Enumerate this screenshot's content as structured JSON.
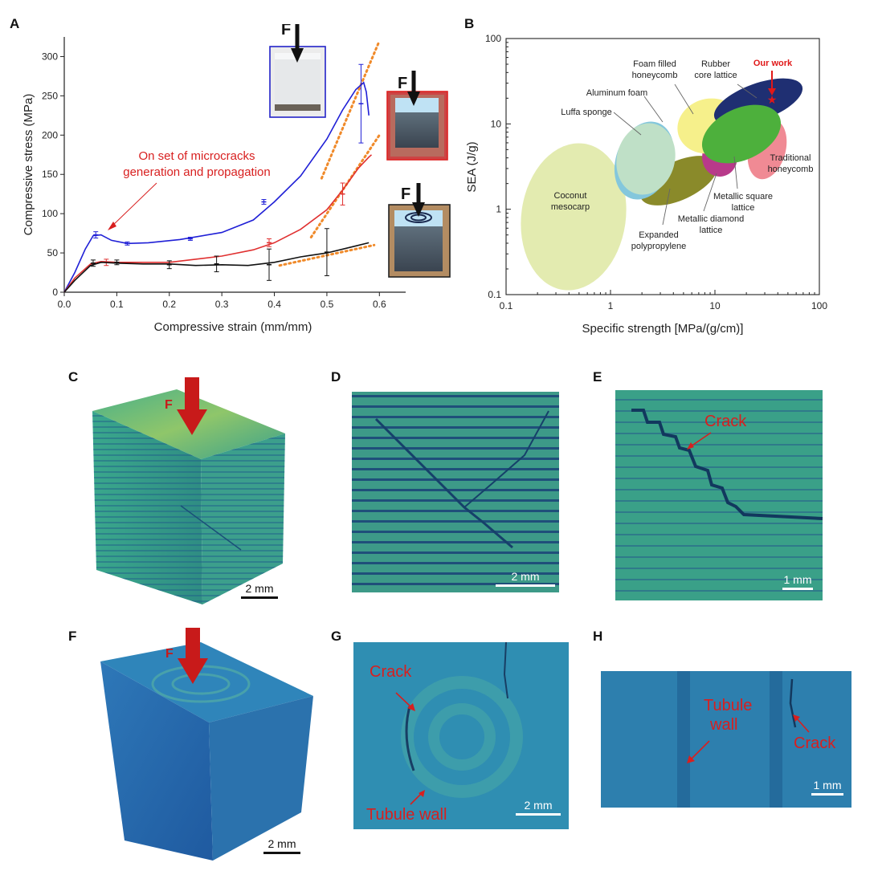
{
  "panels": {
    "A": "A",
    "B": "B",
    "C": "C",
    "D": "D",
    "E": "E",
    "F": "F",
    "G": "G",
    "H": "H"
  },
  "chart_data": [
    {
      "type": "line",
      "xlabel": "Compressive strain (mm/mm)",
      "ylabel": "Compressive stress (MPa)",
      "xlim": [
        0,
        0.65
      ],
      "ylim": [
        0,
        325
      ],
      "xticks": [
        "0.0",
        "0.1",
        "0.2",
        "0.3",
        "0.4",
        "0.5",
        "0.6"
      ],
      "yticks": [
        "0",
        "50",
        "100",
        "150",
        "200",
        "250",
        "300"
      ],
      "annotation": [
        "On set of microcracks",
        "generation and propagation"
      ],
      "force_label": "F",
      "series": [
        {
          "name": "blue",
          "color": "#1f1fd6",
          "points": [
            [
              0,
              0
            ],
            [
              0.02,
              25
            ],
            [
              0.04,
              55
            ],
            [
              0.055,
              72
            ],
            [
              0.07,
              73
            ],
            [
              0.09,
              66
            ],
            [
              0.12,
              62
            ],
            [
              0.16,
              63
            ],
            [
              0.22,
              67
            ],
            [
              0.3,
              76
            ],
            [
              0.36,
              92
            ],
            [
              0.4,
              115
            ],
            [
              0.45,
              148
            ],
            [
              0.5,
              195
            ],
            [
              0.53,
              232
            ],
            [
              0.555,
              258
            ],
            [
              0.57,
              267
            ],
            [
              0.575,
              255
            ],
            [
              0.58,
              225
            ]
          ],
          "errors": [
            [
              0.06,
              73,
              4
            ],
            [
              0.12,
              62,
              2
            ],
            [
              0.24,
              68,
              2
            ],
            [
              0.38,
              115,
              3
            ],
            [
              0.565,
              240,
              50
            ]
          ]
        },
        {
          "name": "red",
          "color": "#e03030",
          "points": [
            [
              0,
              0
            ],
            [
              0.02,
              18
            ],
            [
              0.05,
              36
            ],
            [
              0.07,
              39
            ],
            [
              0.1,
              38
            ],
            [
              0.2,
              38
            ],
            [
              0.3,
              46
            ],
            [
              0.36,
              54
            ],
            [
              0.4,
              63
            ],
            [
              0.45,
              80
            ],
            [
              0.5,
              105
            ],
            [
              0.53,
              130
            ],
            [
              0.56,
              158
            ],
            [
              0.58,
              172
            ],
            [
              0.585,
              175
            ]
          ],
          "errors": [
            [
              0.08,
              38,
              4
            ],
            [
              0.39,
              63,
              5
            ],
            [
              0.53,
              125,
              14
            ]
          ]
        },
        {
          "name": "black",
          "color": "#111111",
          "points": [
            [
              0,
              0
            ],
            [
              0.02,
              15
            ],
            [
              0.05,
              34
            ],
            [
              0.07,
              38
            ],
            [
              0.1,
              37
            ],
            [
              0.15,
              36
            ],
            [
              0.2,
              36
            ],
            [
              0.25,
              34
            ],
            [
              0.3,
              35
            ],
            [
              0.35,
              34
            ],
            [
              0.4,
              38
            ],
            [
              0.45,
              45
            ],
            [
              0.5,
              50
            ],
            [
              0.55,
              58
            ],
            [
              0.58,
              63
            ]
          ],
          "errors": [
            [
              0.055,
              37,
              4
            ],
            [
              0.1,
              38,
              3
            ],
            [
              0.2,
              35,
              5
            ],
            [
              0.29,
              36,
              10
            ],
            [
              0.39,
              35,
              20
            ],
            [
              0.5,
              51,
              30
            ]
          ]
        }
      ],
      "tangents": [
        {
          "from": [
            0.49,
            145
          ],
          "to": [
            0.6,
            320
          ]
        },
        {
          "from": [
            0.47,
            70
          ],
          "to": [
            0.6,
            200
          ]
        },
        {
          "from": [
            0.41,
            34
          ],
          "to": [
            0.59,
            60
          ]
        }
      ]
    },
    {
      "type": "scatter",
      "xlabel": "Specific strength [MPa/(g/cm)]",
      "ylabel": "SEA (J/g)",
      "xscale": "log",
      "yscale": "log",
      "xlim": [
        0.1,
        100
      ],
      "ylim": [
        0.1,
        100
      ],
      "xticks": [
        "0.1",
        "1",
        "10",
        "100"
      ],
      "yticks": [
        "0.1",
        "1",
        "10",
        "100"
      ],
      "regions": [
        {
          "name": "Coconut mesocarp",
          "lines": [
            "Coconut",
            "mesocarp"
          ],
          "color": "#e3ebb0"
        },
        {
          "name": "Expanded polypropylene",
          "lines": [
            "Expanded",
            "polypropylene"
          ],
          "color": "#8a8a2a"
        },
        {
          "name": "Luffa sponge",
          "lines": [
            "Luffa sponge"
          ],
          "color": "#bfe0c7"
        },
        {
          "name": "Aluminum foam",
          "lines": [
            "Aluminum foam"
          ],
          "color": "#84c7dc"
        },
        {
          "name": "Foam filled honeycomb",
          "lines": [
            "Foam filled",
            "honeycomb"
          ],
          "color": "#f6f08b"
        },
        {
          "name": "Rubber core lattice",
          "lines": [
            "Rubber",
            "core lattice"
          ],
          "color": "#1f2f72"
        },
        {
          "name": "Metallic diamond lattice",
          "lines": [
            "Metallic diamond",
            "lattice"
          ],
          "color": "#b83a8a"
        },
        {
          "name": "Metallic square lattice",
          "lines": [
            "Metallic square",
            "lattice"
          ],
          "color": "#4db03c"
        },
        {
          "name": "Traditional honeycomb",
          "lines": [
            "Traditional",
            "honeycomb"
          ],
          "color": "#f08a94"
        }
      ],
      "highlight": {
        "label": "Our work",
        "x": 35,
        "y": 19,
        "color": "#e01818"
      }
    }
  ],
  "micro": {
    "C": {
      "force": "F",
      "scale": "2 mm"
    },
    "D": {
      "scale": "2 mm"
    },
    "E": {
      "crack": "Crack",
      "scale": "1 mm"
    },
    "F": {
      "force": "F",
      "scale": "2 mm"
    },
    "G": {
      "crack": "Crack",
      "wall": "Tubule wall",
      "scale": "2 mm"
    },
    "H": {
      "wall_line1": "Tubule",
      "wall_line2": "wall",
      "crack": "Crack",
      "scale": "1 mm"
    }
  }
}
